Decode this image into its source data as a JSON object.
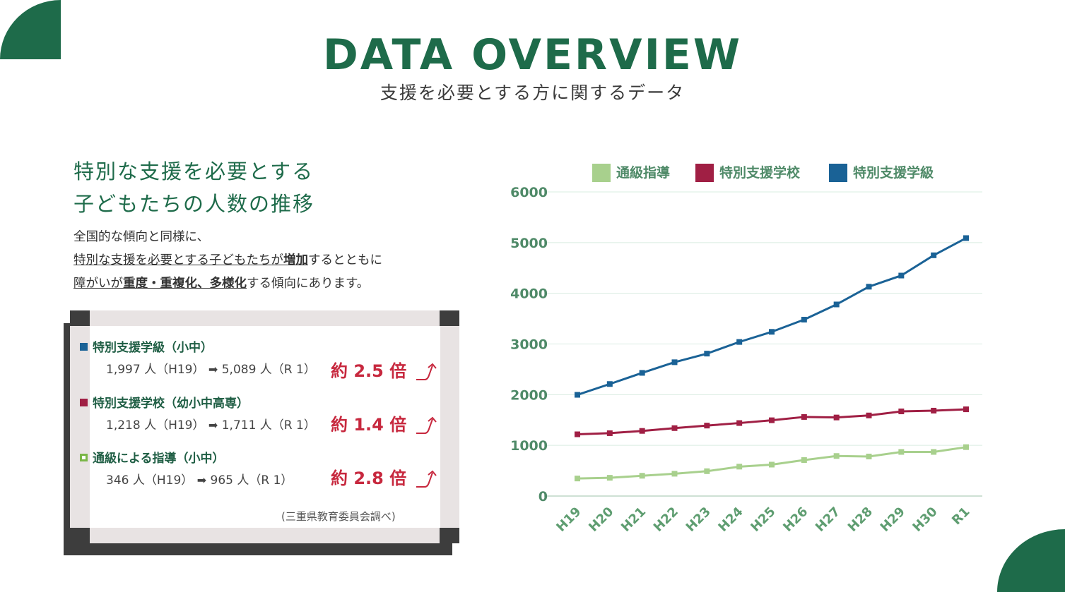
{
  "header": {
    "title": "DATA OVERVIEW",
    "subtitle": "支援を必要とする方に関するデータ"
  },
  "section": {
    "heading_line1": "特別な支援を必要とする",
    "heading_line2": "子どもたちの人数の推移",
    "desc_line1": "全国的な傾向と同様に、",
    "desc_line2_a": "特別な支援を必要とする子どもたちが",
    "desc_line2_b": "増加",
    "desc_line2_c": "するとともに",
    "desc_line3_a": "障がいが",
    "desc_line3_b": "重度・重複化、多様化",
    "desc_line3_c": "する傾向にあります。"
  },
  "card": {
    "items": [
      {
        "title": "特別支援学級（小中）",
        "detail_from": "1,997 人（H19）",
        "detail_to": "5,089 人（R 1）",
        "ratio": "約 2.5 倍",
        "square_color": "#1a6296",
        "square_style": "filled"
      },
      {
        "title": "特別支援学校（幼小中高専）",
        "detail_from": "1,218 人（H19）",
        "detail_to": "1,711 人（R 1）",
        "ratio": "約 1.4 倍",
        "square_color": "#a01f44",
        "square_style": "filled"
      },
      {
        "title": "通級による指導（小中）",
        "detail_from": "346 人（H19）",
        "detail_to": "965 人（R 1）",
        "ratio": "約 2.8 倍",
        "square_color": "#7ab648",
        "square_style": "hollow"
      }
    ],
    "arrow_glyph": "➡",
    "source": "(三重県教育委員会調べ)"
  },
  "colors": {
    "brand_green": "#1e6b4a",
    "ratio_red": "#c7283e"
  },
  "icons": [
    "up-arrow-icon",
    "right-arrow-icon"
  ],
  "chart_data": {
    "type": "line",
    "categories": [
      "H19",
      "H20",
      "H21",
      "H22",
      "H23",
      "H24",
      "H25",
      "H26",
      "H27",
      "H28",
      "H29",
      "H30",
      "R1"
    ],
    "series": [
      {
        "name": "通級指導",
        "color": "#a8d08d",
        "values": [
          346,
          360,
          400,
          440,
          490,
          580,
          620,
          710,
          790,
          780,
          870,
          870,
          965
        ]
      },
      {
        "name": "特別支援学校",
        "color": "#a01f44",
        "values": [
          1218,
          1240,
          1285,
          1340,
          1390,
          1440,
          1495,
          1560,
          1550,
          1590,
          1670,
          1685,
          1711
        ]
      },
      {
        "name": "特別支援学級",
        "color": "#1a6296",
        "values": [
          1997,
          2210,
          2430,
          2640,
          2810,
          3040,
          3240,
          3480,
          3780,
          4130,
          4350,
          4750,
          5089
        ]
      }
    ],
    "yticks": [
      0,
      1000,
      2000,
      3000,
      4000,
      5000,
      6000
    ],
    "ylim": [
      0,
      6000
    ],
    "grid": true,
    "legend": "top"
  }
}
